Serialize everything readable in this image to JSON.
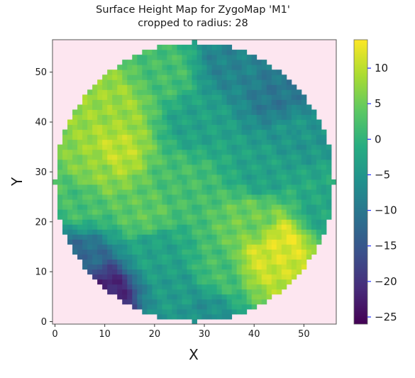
{
  "figure": {
    "title_line1": "Surface Height Map for ZygoMap 'M1'",
    "title_line2": "cropped to radius: 28"
  },
  "chart_data": {
    "type": "heatmap",
    "title": "Surface Height Map for ZygoMap 'M1'\ncropped to radius: 28",
    "xlabel": "X",
    "ylabel": "Y",
    "xlim": [
      -0.5,
      56.5
    ],
    "ylim": [
      -0.5,
      56.5
    ],
    "x_ticks": [
      0,
      10,
      20,
      30,
      40,
      50
    ],
    "y_ticks": [
      0,
      10,
      20,
      30,
      40,
      50
    ],
    "grid_size": 57,
    "center": [
      28,
      28
    ],
    "crop_radius": 28,
    "outside_color": "#fde6f0",
    "colormap": "viridis",
    "colorbar": {
      "range": [
        -26,
        14
      ],
      "ticks": [
        10,
        5,
        0,
        -5,
        -10,
        -15,
        -20,
        -25
      ],
      "tick_color": "#1f2fff"
    },
    "surface_samples": [
      {
        "x": 12,
        "y": 43,
        "value": 8
      },
      {
        "x": 12,
        "y": 34,
        "value": 10
      },
      {
        "x": 8,
        "y": 30,
        "value": 7
      },
      {
        "x": 5,
        "y": 25,
        "value": 2
      },
      {
        "x": 18,
        "y": 22,
        "value": 4
      },
      {
        "x": 25,
        "y": 28,
        "value": 2
      },
      {
        "x": 28,
        "y": 40,
        "value": -3
      },
      {
        "x": 35,
        "y": 52,
        "value": -8
      },
      {
        "x": 45,
        "y": 45,
        "value": -10
      },
      {
        "x": 48,
        "y": 38,
        "value": -5
      },
      {
        "x": 42,
        "y": 30,
        "value": -3
      },
      {
        "x": 40,
        "y": 20,
        "value": 5
      },
      {
        "x": 42,
        "y": 13,
        "value": 11
      },
      {
        "x": 46,
        "y": 16,
        "value": 12
      },
      {
        "x": 33,
        "y": 10,
        "value": 2
      },
      {
        "x": 25,
        "y": 6,
        "value": -4
      },
      {
        "x": 10,
        "y": 6,
        "value": -22
      },
      {
        "x": 5,
        "y": 12,
        "value": -12
      },
      {
        "x": 20,
        "y": 14,
        "value": -3
      },
      {
        "x": 30,
        "y": 2,
        "value": -6
      },
      {
        "x": 53,
        "y": 22,
        "value": -2
      },
      {
        "x": 22,
        "y": 50,
        "value": 2
      }
    ]
  }
}
